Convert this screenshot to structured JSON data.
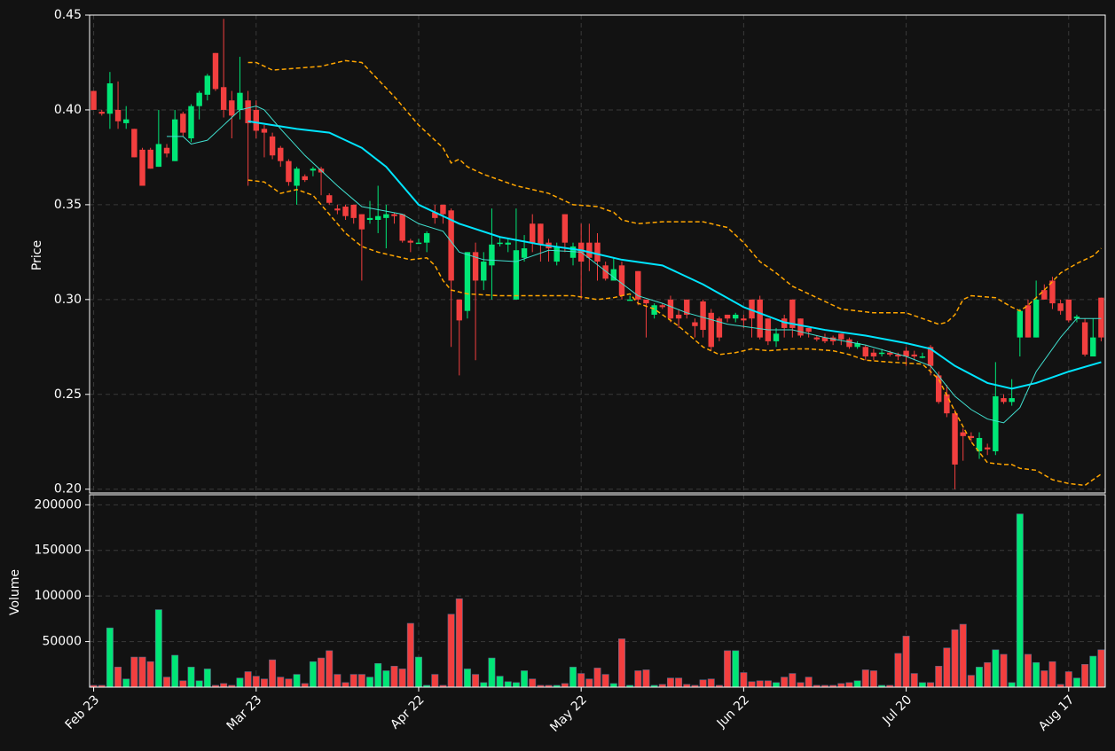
{
  "chart_data": {
    "type": "candlestick",
    "ylabel": "Price",
    "volume_ylabel": "Volume",
    "up_color": "#00e676",
    "down_color": "#f23f3f",
    "grid": true,
    "ylim": [
      0.198,
      0.45
    ],
    "yticks": [
      {
        "value": 0.2,
        "label": "0.20"
      },
      0.25,
      {
        "value": 0.3,
        "label": "0.30"
      },
      0.35,
      {
        "value": 0.4,
        "label": "0.40"
      },
      0.45
    ],
    "volume_ylim": [
      0,
      211000
    ],
    "volume_yticks": [
      50000,
      100000,
      150000,
      200000
    ],
    "categories": [
      "Feb 23",
      null,
      null,
      null,
      null,
      null,
      null,
      null,
      null,
      null,
      null,
      null,
      null,
      null,
      null,
      null,
      null,
      null,
      null,
      null,
      "Mar 23",
      null,
      null,
      null,
      null,
      null,
      null,
      null,
      null,
      null,
      null,
      null,
      null,
      null,
      null,
      null,
      null,
      null,
      null,
      null,
      "Apr 22",
      null,
      null,
      null,
      null,
      null,
      null,
      null,
      null,
      null,
      null,
      null,
      null,
      null,
      null,
      null,
      null,
      null,
      null,
      null,
      "May 22",
      null,
      null,
      null,
      null,
      null,
      null,
      null,
      null,
      null,
      null,
      null,
      null,
      null,
      null,
      null,
      null,
      null,
      null,
      null,
      "Jun 22",
      null,
      null,
      null,
      null,
      null,
      null,
      null,
      null,
      null,
      null,
      null,
      null,
      null,
      null,
      null,
      null,
      null,
      null,
      null,
      "Jul 20",
      null,
      null,
      null,
      null,
      null,
      null,
      null,
      null,
      null,
      null,
      null,
      null,
      null,
      null,
      null,
      null,
      null,
      null,
      null,
      "Aug 17",
      null,
      null,
      null,
      null
    ],
    "open": [
      0.41,
      0.399,
      0.398,
      0.4,
      0.393,
      0.39,
      0.379,
      0.379,
      0.37,
      0.38,
      0.373,
      0.398,
      0.385,
      0.402,
      0.408,
      0.43,
      0.412,
      0.405,
      0.4,
      0.405,
      0.4,
      0.39,
      0.386,
      0.38,
      0.373,
      0.36,
      0.365,
      0.368,
      0.369,
      0.355,
      0.348,
      0.349,
      0.35,
      0.345,
      0.342,
      0.342,
      0.343,
      0.345,
      0.345,
      0.331,
      0.33,
      0.33,
      0.346,
      0.35,
      0.347,
      0.3,
      0.294,
      0.325,
      0.31,
      0.318,
      0.33,
      0.329,
      0.3,
      0.322,
      0.34,
      0.34,
      0.33,
      0.32,
      0.345,
      0.322,
      0.33,
      0.33,
      0.33,
      0.318,
      0.31,
      0.318,
      0.3,
      0.315,
      0.3,
      0.292,
      0.297,
      0.3,
      0.292,
      0.3,
      0.288,
      0.299,
      0.293,
      0.29,
      0.292,
      0.29,
      0.29,
      0.3,
      0.3,
      0.29,
      0.278,
      0.29,
      0.3,
      0.29,
      0.285,
      0.28,
      0.28,
      0.28,
      0.282,
      0.279,
      0.275,
      0.275,
      0.272,
      0.272,
      0.272,
      0.271,
      0.273,
      0.271,
      0.27,
      0.275,
      0.26,
      0.25,
      0.24,
      0.23,
      0.228,
      0.22,
      0.222,
      0.22,
      0.248,
      0.246,
      0.28,
      0.297,
      0.28,
      0.305,
      0.31,
      0.298,
      0.3,
      0.29,
      0.288,
      0.27,
      0.301
    ],
    "high": [
      0.41,
      0.4,
      0.42,
      0.415,
      0.402,
      0.39,
      0.38,
      0.38,
      0.4,
      0.382,
      0.4,
      0.399,
      0.403,
      0.41,
      0.419,
      0.43,
      0.448,
      0.41,
      0.428,
      0.41,
      0.405,
      0.392,
      0.388,
      0.381,
      0.374,
      0.37,
      0.366,
      0.37,
      0.37,
      0.356,
      0.35,
      0.35,
      0.35,
      0.345,
      0.352,
      0.36,
      0.35,
      0.346,
      0.345,
      0.332,
      0.332,
      0.336,
      0.35,
      0.35,
      0.348,
      0.3,
      0.325,
      0.33,
      0.325,
      0.348,
      0.333,
      0.332,
      0.348,
      0.334,
      0.345,
      0.34,
      0.332,
      0.33,
      0.345,
      0.33,
      0.34,
      0.34,
      0.335,
      0.32,
      0.322,
      0.32,
      0.302,
      0.315,
      0.3,
      0.298,
      0.298,
      0.302,
      0.295,
      0.3,
      0.29,
      0.3,
      0.295,
      0.291,
      0.292,
      0.293,
      0.292,
      0.3,
      0.302,
      0.29,
      0.285,
      0.292,
      0.3,
      0.29,
      0.285,
      0.281,
      0.282,
      0.281,
      0.282,
      0.28,
      0.278,
      0.276,
      0.274,
      0.274,
      0.273,
      0.272,
      0.275,
      0.273,
      0.272,
      0.276,
      0.262,
      0.255,
      0.242,
      0.232,
      0.23,
      0.23,
      0.224,
      0.267,
      0.25,
      0.258,
      0.295,
      0.3,
      0.31,
      0.308,
      0.312,
      0.3,
      0.3,
      0.292,
      0.29,
      0.29,
      0.301
    ],
    "low": [
      0.4,
      0.397,
      0.39,
      0.39,
      0.39,
      0.375,
      0.36,
      0.369,
      0.37,
      0.375,
      0.373,
      0.386,
      0.383,
      0.395,
      0.405,
      0.41,
      0.396,
      0.385,
      0.395,
      0.36,
      0.385,
      0.375,
      0.374,
      0.37,
      0.36,
      0.35,
      0.362,
      0.365,
      0.355,
      0.35,
      0.345,
      0.342,
      0.34,
      0.31,
      0.34,
      0.335,
      0.327,
      0.34,
      0.33,
      0.325,
      0.33,
      0.325,
      0.34,
      0.34,
      0.275,
      0.26,
      0.29,
      0.268,
      0.305,
      0.3,
      0.328,
      0.325,
      0.3,
      0.32,
      0.325,
      0.32,
      0.32,
      0.318,
      0.325,
      0.318,
      0.3,
      0.315,
      0.31,
      0.31,
      0.31,
      0.3,
      0.3,
      0.297,
      0.28,
      0.29,
      0.295,
      0.288,
      0.285,
      0.29,
      0.28,
      0.28,
      0.273,
      0.278,
      0.288,
      0.288,
      0.285,
      0.28,
      0.279,
      0.276,
      0.275,
      0.28,
      0.28,
      0.28,
      0.28,
      0.278,
      0.277,
      0.276,
      0.276,
      0.274,
      0.274,
      0.268,
      0.268,
      0.27,
      0.27,
      0.268,
      0.265,
      0.268,
      0.269,
      0.26,
      0.245,
      0.238,
      0.2,
      0.215,
      0.225,
      0.216,
      0.218,
      0.218,
      0.245,
      0.244,
      0.27,
      0.28,
      0.28,
      0.3,
      0.295,
      0.292,
      0.288,
      0.288,
      0.27,
      0.27,
      0.278
    ],
    "close": [
      0.4,
      0.398,
      0.414,
      0.394,
      0.395,
      0.375,
      0.36,
      0.369,
      0.382,
      0.377,
      0.395,
      0.388,
      0.402,
      0.409,
      0.418,
      0.411,
      0.4,
      0.397,
      0.409,
      0.393,
      0.389,
      0.388,
      0.376,
      0.373,
      0.362,
      0.369,
      0.363,
      0.369,
      0.367,
      0.351,
      0.347,
      0.344,
      0.343,
      0.337,
      0.343,
      0.344,
      0.345,
      0.344,
      0.331,
      0.33,
      0.33,
      0.335,
      0.343,
      0.345,
      0.31,
      0.289,
      0.325,
      0.31,
      0.32,
      0.329,
      0.33,
      0.33,
      0.326,
      0.327,
      0.33,
      0.329,
      0.327,
      0.328,
      0.33,
      0.328,
      0.32,
      0.322,
      0.32,
      0.311,
      0.316,
      0.302,
      0.3,
      0.3,
      0.298,
      0.297,
      0.296,
      0.29,
      0.29,
      0.292,
      0.286,
      0.284,
      0.275,
      0.28,
      0.29,
      0.292,
      0.289,
      0.29,
      0.28,
      0.278,
      0.282,
      0.285,
      0.285,
      0.281,
      0.283,
      0.279,
      0.278,
      0.278,
      0.279,
      0.275,
      0.277,
      0.27,
      0.27,
      0.272,
      0.271,
      0.27,
      0.27,
      0.27,
      0.27,
      0.265,
      0.246,
      0.24,
      0.213,
      0.228,
      0.227,
      0.227,
      0.221,
      0.249,
      0.246,
      0.248,
      0.294,
      0.28,
      0.3,
      0.3,
      0.298,
      0.294,
      0.289,
      0.291,
      0.271,
      0.28,
      0.28
    ],
    "volume": [
      2000,
      2000,
      65000,
      22000,
      9000,
      33000,
      33000,
      28000,
      85000,
      11000,
      35000,
      7000,
      22000,
      7000,
      20000,
      2000,
      4000,
      2000,
      10000,
      17000,
      12000,
      9000,
      30000,
      11000,
      9000,
      14000,
      4000,
      28000,
      32000,
      40000,
      14000,
      5000,
      14000,
      14000,
      11000,
      26000,
      18000,
      23000,
      20000,
      70000,
      33000,
      2000,
      14000,
      2000,
      80000,
      97000,
      20000,
      14000,
      5000,
      32000,
      12000,
      6000,
      5000,
      18000,
      9000,
      2000,
      2000,
      2000,
      4000,
      22000,
      15000,
      9000,
      21000,
      14000,
      4000,
      53000,
      2000,
      18000,
      19000,
      2000,
      3000,
      10000,
      10000,
      3000,
      2000,
      8000,
      9000,
      2000,
      40000,
      40000,
      16000,
      6000,
      7000,
      7000,
      5000,
      11000,
      15000,
      5000,
      11000,
      2000,
      2000,
      2000,
      4000,
      5000,
      7000,
      19000,
      18000,
      2000,
      2000,
      37000,
      56000,
      15000,
      5000,
      5000,
      23000,
      43000,
      63000,
      69000,
      13000,
      22000,
      27000,
      41000,
      36000,
      5000,
      190000,
      36000,
      27000,
      18000,
      28000,
      3000,
      17000,
      10000,
      25000,
      34000,
      41000
    ],
    "overlays": [
      {
        "color": "#00e5ff",
        "width": 2,
        "dash": false,
        "x": [
          19,
          25,
          29,
          33,
          36,
          40,
          45,
          50,
          55,
          60,
          65,
          70,
          75,
          80,
          85,
          90,
          95,
          100,
          103,
          106,
          110,
          113,
          116,
          120,
          124
        ],
        "values": [
          0.394,
          0.39,
          0.388,
          0.38,
          0.37,
          0.35,
          0.34,
          0.333,
          0.329,
          0.326,
          0.321,
          0.318,
          0.308,
          0.296,
          0.288,
          0.284,
          0.281,
          0.277,
          0.274,
          0.265,
          0.256,
          0.253,
          0.256,
          0.262,
          0.267
        ]
      },
      {
        "color": "#40e0d0",
        "width": 1,
        "dash": false,
        "x": [
          9,
          11,
          12,
          14,
          16,
          18,
          20,
          21,
          23,
          26,
          30,
          33,
          38,
          40,
          43,
          45,
          48,
          52,
          56,
          60,
          63,
          67,
          70,
          73,
          78,
          83,
          86,
          90,
          95,
          100,
          103,
          106,
          108,
          110,
          112,
          114,
          116,
          119,
          121,
          124
        ],
        "values": [
          0.386,
          0.386,
          0.382,
          0.384,
          0.392,
          0.4,
          0.402,
          0.4,
          0.39,
          0.376,
          0.36,
          0.349,
          0.345,
          0.34,
          0.336,
          0.325,
          0.321,
          0.32,
          0.326,
          0.325,
          0.315,
          0.302,
          0.298,
          0.293,
          0.287,
          0.284,
          0.284,
          0.28,
          0.276,
          0.27,
          0.265,
          0.249,
          0.242,
          0.237,
          0.235,
          0.243,
          0.262,
          0.28,
          0.29,
          0.29
        ]
      },
      {
        "color": "#ffa500",
        "width": 1.5,
        "dash": true,
        "x": [
          19,
          20,
          22,
          25,
          28,
          31,
          33,
          35,
          37,
          40,
          43,
          44,
          45,
          46,
          48,
          52,
          56,
          59,
          62,
          64,
          65,
          67,
          70,
          75,
          78,
          80,
          82,
          84,
          86,
          88,
          90,
          92,
          94,
          96,
          100,
          102,
          104,
          105,
          106,
          107,
          108,
          111,
          113,
          114,
          115,
          117,
          119,
          121,
          123,
          124
        ],
        "values": [
          0.425,
          0.425,
          0.421,
          0.422,
          0.423,
          0.426,
          0.425,
          0.416,
          0.407,
          0.392,
          0.38,
          0.372,
          0.374,
          0.37,
          0.366,
          0.36,
          0.356,
          0.35,
          0.349,
          0.346,
          0.342,
          0.34,
          0.341,
          0.341,
          0.338,
          0.33,
          0.32,
          0.314,
          0.307,
          0.303,
          0.299,
          0.295,
          0.294,
          0.293,
          0.293,
          0.29,
          0.287,
          0.288,
          0.292,
          0.3,
          0.302,
          0.301,
          0.296,
          0.294,
          0.297,
          0.305,
          0.314,
          0.319,
          0.323,
          0.327
        ]
      },
      {
        "color": "#ffa500",
        "width": 1.5,
        "dash": true,
        "x": [
          19,
          21,
          23,
          25,
          27,
          29,
          31,
          33,
          35,
          37,
          39,
          41,
          42,
          43,
          44,
          46,
          50,
          55,
          59,
          62,
          64,
          66,
          67,
          69,
          72,
          75,
          77,
          79,
          81,
          83,
          86,
          88,
          91,
          93,
          95,
          98,
          102,
          104,
          106,
          108,
          110,
          112,
          113,
          114,
          116,
          118,
          120,
          122,
          124
        ],
        "values": [
          0.363,
          0.362,
          0.356,
          0.358,
          0.355,
          0.345,
          0.335,
          0.328,
          0.325,
          0.323,
          0.321,
          0.322,
          0.318,
          0.31,
          0.305,
          0.303,
          0.302,
          0.302,
          0.302,
          0.3,
          0.301,
          0.303,
          0.298,
          0.295,
          0.286,
          0.275,
          0.271,
          0.272,
          0.274,
          0.273,
          0.274,
          0.274,
          0.273,
          0.271,
          0.268,
          0.267,
          0.266,
          0.258,
          0.241,
          0.225,
          0.214,
          0.213,
          0.213,
          0.211,
          0.21,
          0.205,
          0.203,
          0.202,
          0.208
        ]
      }
    ]
  }
}
